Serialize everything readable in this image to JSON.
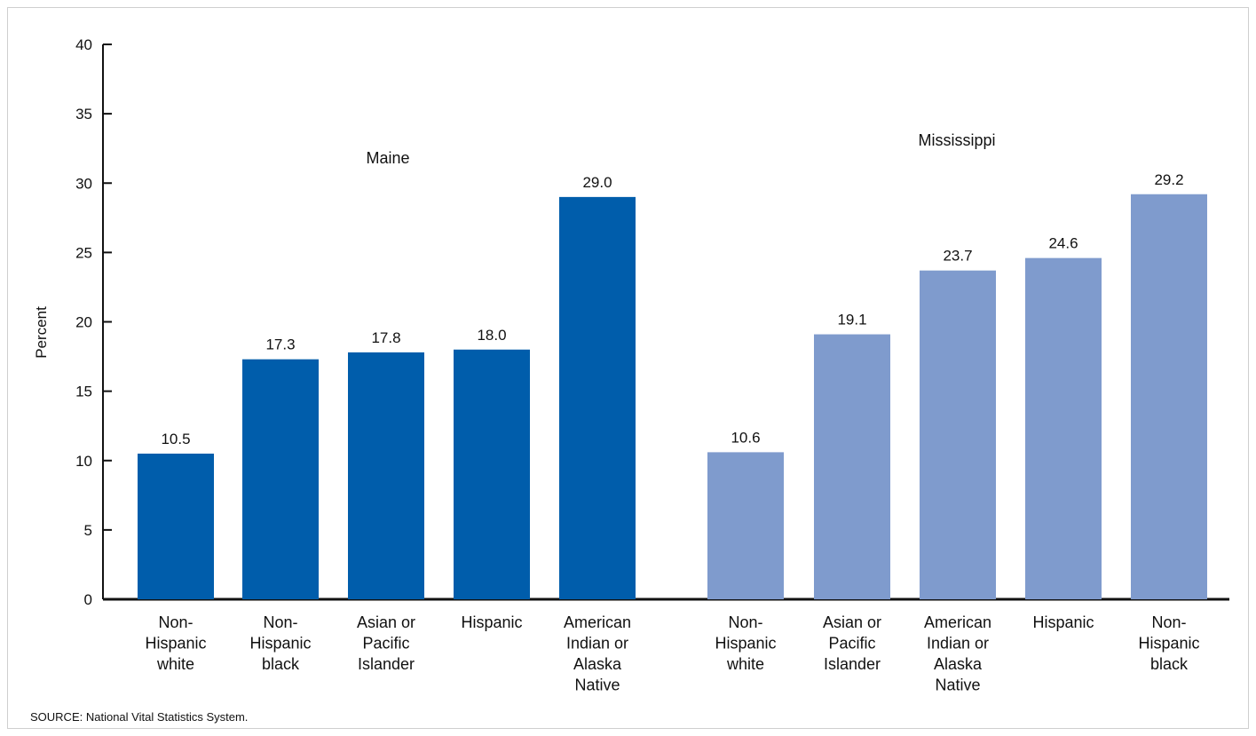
{
  "chart_data": {
    "type": "bar",
    "ylabel": "Percent",
    "ylim": [
      0,
      40
    ],
    "yticks": [
      0,
      5,
      10,
      15,
      20,
      25,
      30,
      35,
      40
    ],
    "grid": false,
    "groups": [
      {
        "name": "Maine",
        "color": "#005dab",
        "categories": [
          "Non-\nHispanic\nwhite",
          "Non-\nHispanic\nblack",
          "Asian or\nPacific\nIslander",
          "Hispanic",
          "American\nIndian or\nAlaska\nNative"
        ],
        "values": [
          10.5,
          17.3,
          17.8,
          18.0,
          29.0
        ],
        "value_labels": [
          "10.5",
          "17.3",
          "17.8",
          "18.0",
          "29.0"
        ]
      },
      {
        "name": "Mississippi",
        "color": "#7f9bcd",
        "categories": [
          "Non-\nHispanic\nwhite",
          "Asian or\nPacific\nIslander",
          "American\nIndian or\nAlaska\nNative",
          "Hispanic",
          "Non-\nHispanic\nblack"
        ],
        "values": [
          10.6,
          19.1,
          23.7,
          24.6,
          29.2
        ],
        "value_labels": [
          "10.6",
          "19.1",
          "23.7",
          "24.6",
          "29.2"
        ]
      }
    ]
  },
  "source": "SOURCE: National Vital Statistics System."
}
